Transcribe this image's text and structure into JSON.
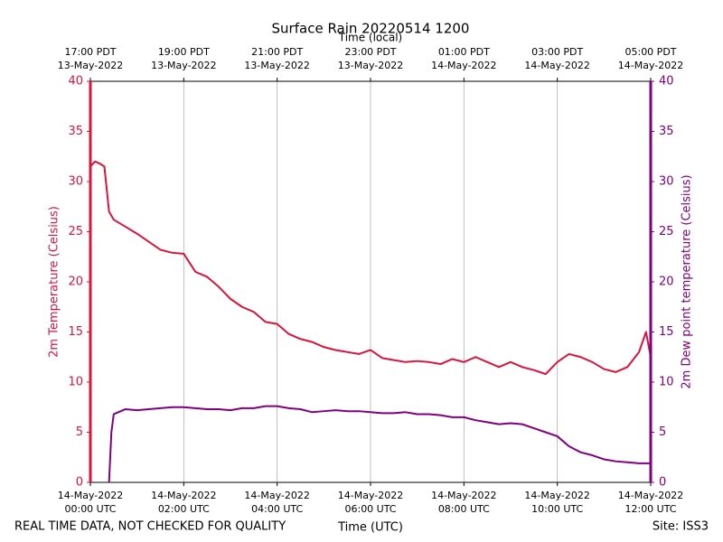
{
  "chart_data": {
    "type": "line",
    "title": "Surface Rain 20220514 1200",
    "top_axis_label": "Time (local)",
    "x_axis_label": "Time (UTC)",
    "y_axis_label": "2m Temperature (Celsius)",
    "y2_axis_label": "2m Dew point temperature (Celsius)",
    "footer_left": "REAL TIME DATA, NOT CHECKED FOR QUALITY",
    "footer_right": "Site: ISS3",
    "xlim": [
      0,
      12
    ],
    "xticks": [
      {
        "value": 0,
        "label": [
          "14-May-2022",
          "00:00 UTC"
        ]
      },
      {
        "value": 2,
        "label": [
          "14-May-2022",
          "02:00 UTC"
        ]
      },
      {
        "value": 4,
        "label": [
          "14-May-2022",
          "04:00 UTC"
        ]
      },
      {
        "value": 6,
        "label": [
          "14-May-2022",
          "06:00 UTC"
        ]
      },
      {
        "value": 8,
        "label": [
          "14-May-2022",
          "08:00 UTC"
        ]
      },
      {
        "value": 10,
        "label": [
          "14-May-2022",
          "10:00 UTC"
        ]
      },
      {
        "value": 12,
        "label": [
          "14-May-2022",
          "12:00 UTC"
        ]
      }
    ],
    "top_xticks": [
      {
        "value": 0,
        "label": [
          "17:00 PDT",
          "13-May-2022"
        ]
      },
      {
        "value": 2,
        "label": [
          "19:00 PDT",
          "13-May-2022"
        ]
      },
      {
        "value": 4,
        "label": [
          "21:00 PDT",
          "13-May-2022"
        ]
      },
      {
        "value": 6,
        "label": [
          "23:00 PDT",
          "13-May-2022"
        ]
      },
      {
        "value": 8,
        "label": [
          "01:00 PDT",
          "14-May-2022"
        ]
      },
      {
        "value": 10,
        "label": [
          "03:00 PDT",
          "14-May-2022"
        ]
      },
      {
        "value": 12,
        "label": [
          "05:00 PDT",
          "14-May-2022"
        ]
      }
    ],
    "ylim": [
      0,
      40
    ],
    "yticks": [
      0,
      5,
      10,
      15,
      20,
      25,
      30,
      35,
      40
    ],
    "y2lim": [
      0,
      40
    ],
    "y2ticks": [
      0,
      5,
      10,
      15,
      20,
      25,
      30,
      35,
      40
    ],
    "grid": true,
    "x": [
      0,
      0.1,
      0.2,
      0.3,
      0.4,
      0.45,
      0.5,
      0.75,
      1,
      1.25,
      1.5,
      1.75,
      2,
      2.25,
      2.5,
      2.75,
      3,
      3.25,
      3.5,
      3.75,
      4,
      4.25,
      4.5,
      4.75,
      5,
      5.25,
      5.5,
      5.75,
      6,
      6.25,
      6.5,
      6.75,
      7,
      7.25,
      7.5,
      7.75,
      8,
      8.25,
      8.5,
      8.75,
      9,
      9.25,
      9.5,
      9.75,
      10,
      10.25,
      10.5,
      10.75,
      11,
      11.25,
      11.5,
      11.75,
      11.9,
      12
    ],
    "series": [
      {
        "name": "2m Temperature",
        "color": "#dc143c",
        "axis": "y",
        "values": [
          31.5,
          32,
          31.8,
          31.5,
          27,
          26.6,
          26.2,
          25.5,
          24.8,
          24,
          23.2,
          22.9,
          22.8,
          21,
          20.5,
          19.5,
          18.3,
          17.5,
          17,
          16,
          15.8,
          14.8,
          14.3,
          14,
          13.5,
          13.2,
          13,
          12.8,
          13.2,
          12.4,
          12.2,
          12,
          12.1,
          12,
          11.8,
          12.3,
          12,
          12.5,
          12,
          11.5,
          12,
          11.5,
          11.2,
          10.8,
          12,
          12.8,
          12.5,
          12,
          11.3,
          11,
          11.5,
          13,
          15,
          12.5
        ]
      },
      {
        "name": "2m Dew point temperature",
        "color": "#800080",
        "axis": "y2",
        "values": [
          null,
          null,
          null,
          null,
          0,
          5,
          6.8,
          7.3,
          7.2,
          7.3,
          7.4,
          7.5,
          7.5,
          7.4,
          7.3,
          7.3,
          7.2,
          7.4,
          7.4,
          7.6,
          7.6,
          7.4,
          7.3,
          7.0,
          7.1,
          7.2,
          7.1,
          7.1,
          7.0,
          6.9,
          6.9,
          7.0,
          6.8,
          6.8,
          6.7,
          6.5,
          6.5,
          6.2,
          6.0,
          5.8,
          5.9,
          5.8,
          5.4,
          5.0,
          4.6,
          3.6,
          3.0,
          2.7,
          2.3,
          2.1,
          2.0,
          1.9,
          1.9,
          1.9
        ]
      }
    ]
  }
}
